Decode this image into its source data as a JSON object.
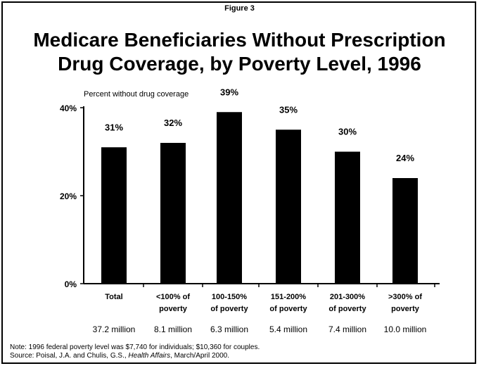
{
  "figure_label": "Figure 3",
  "title_line1": "Medicare Beneficiaries Without Prescription",
  "title_line2": "Drug Coverage, by Poverty Level, 1996",
  "note": "Note: 1996 federal poverty level was $7,740 for individuals; $10,360 for couples.",
  "source_prefix": "Source: Poisal, J.A. and Chulis, G.S., ",
  "source_italic": "Health Affairs",
  "source_suffix": ", March/April 2000.",
  "chart_data": {
    "type": "bar",
    "ylabel": "Percent without drug coverage",
    "ylim": [
      0,
      40
    ],
    "yticks": [
      "0%",
      "20%",
      "40%"
    ],
    "categories": [
      [
        "Total"
      ],
      [
        "<100% of",
        "poverty"
      ],
      [
        "100-150%",
        "of poverty"
      ],
      [
        "151-200%",
        "of poverty"
      ],
      [
        "201-300%",
        "of poverty"
      ],
      [
        ">300% of",
        "poverty"
      ]
    ],
    "values": [
      31,
      32,
      39,
      35,
      30,
      24
    ],
    "data_labels": [
      "31%",
      "32%",
      "39%",
      "35%",
      "30%",
      "24%"
    ],
    "counts": [
      "37.2 million",
      "8.1 million",
      "6.3 million",
      "5.4 million",
      "7.4 million",
      "10.0 million"
    ],
    "bar_color": "#000000",
    "grid": false
  }
}
